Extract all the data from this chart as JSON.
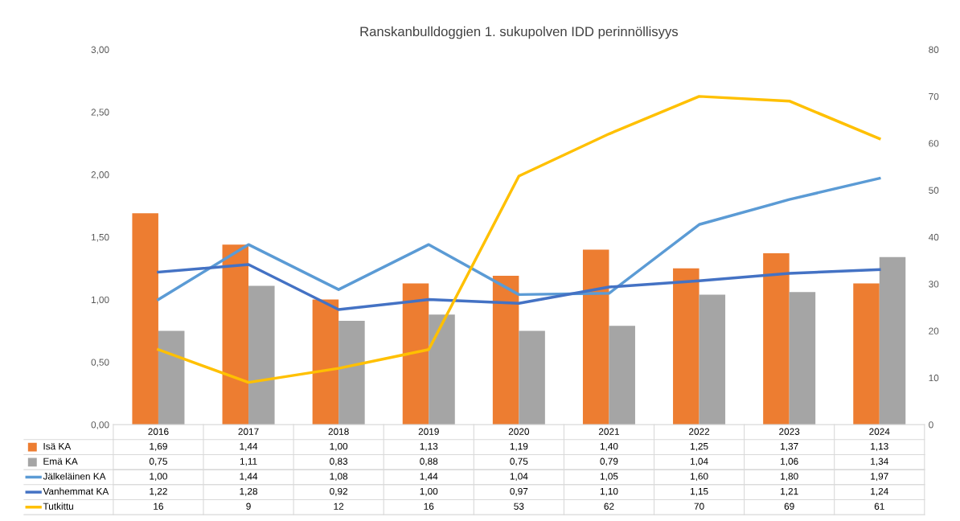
{
  "chart_data": {
    "type": "bar",
    "title": "Ranskanbulldoggien 1. sukupolven IDD perinnöllisyys",
    "categories": [
      "2016",
      "2017",
      "2018",
      "2019",
      "2020",
      "2021",
      "2022",
      "2023",
      "2024"
    ],
    "series": [
      {
        "name": "Isä KA",
        "color": "#ed7d31",
        "values": [
          1.69,
          1.44,
          1.0,
          1.13,
          1.19,
          1.4,
          1.25,
          1.37,
          1.13
        ],
        "value_labels": [
          "1,69",
          "1,44",
          "1,00",
          "1,13",
          "1,19",
          "1,40",
          "1,25",
          "1,37",
          "1,13"
        ]
      },
      {
        "name": "Emä KA",
        "color": "#a5a5a5",
        "values": [
          0.75,
          1.11,
          0.83,
          0.88,
          0.75,
          0.79,
          1.04,
          1.06,
          1.34
        ],
        "value_labels": [
          "0,75",
          "1,11",
          "0,83",
          "0,88",
          "0,75",
          "0,79",
          "1,04",
          "1,06",
          "1,34"
        ]
      },
      {
        "name": "Jälkeläinen KA",
        "type": "line",
        "color": "#5b9bd5",
        "values": [
          1.0,
          1.44,
          1.08,
          1.44,
          1.04,
          1.05,
          1.6,
          1.8,
          1.97
        ],
        "value_labels": [
          "1,00",
          "1,44",
          "1,08",
          "1,44",
          "1,04",
          "1,05",
          "1,60",
          "1,80",
          "1,97"
        ]
      },
      {
        "name": "Vanhemmat KA",
        "type": "line",
        "color": "#4472c4",
        "values": [
          1.22,
          1.28,
          0.92,
          1.0,
          0.97,
          1.1,
          1.15,
          1.21,
          1.24
        ],
        "value_labels": [
          "1,22",
          "1,28",
          "0,92",
          "1,00",
          "0,97",
          "1,10",
          "1,15",
          "1,21",
          "1,24"
        ]
      },
      {
        "name": "Tutkittu",
        "type": "line",
        "axis": "y2",
        "color": "#ffc000",
        "values": [
          16,
          9,
          12,
          16,
          53,
          62,
          70,
          69,
          61
        ],
        "value_labels": [
          "16",
          "9",
          "12",
          "16",
          "53",
          "62",
          "70",
          "69",
          "61"
        ]
      }
    ],
    "ylim": [
      0,
      3
    ],
    "yticks": [
      {
        "value": 0,
        "label": "0,00"
      },
      {
        "value": 0.5,
        "label": "0,50"
      },
      {
        "value": 1,
        "label": "1,00"
      },
      {
        "value": 1.5,
        "label": "1,50"
      },
      {
        "value": 2,
        "label": "2,00"
      },
      {
        "value": 2.5,
        "label": "2,50"
      },
      {
        "value": 3,
        "label": "3,00"
      }
    ],
    "y2lim": [
      0,
      80
    ],
    "y2ticks": [
      0,
      10,
      20,
      30,
      40,
      50,
      60,
      70,
      80
    ],
    "grid": false,
    "legend": "bottom left",
    "marker": "none",
    "line_style": "solid"
  }
}
